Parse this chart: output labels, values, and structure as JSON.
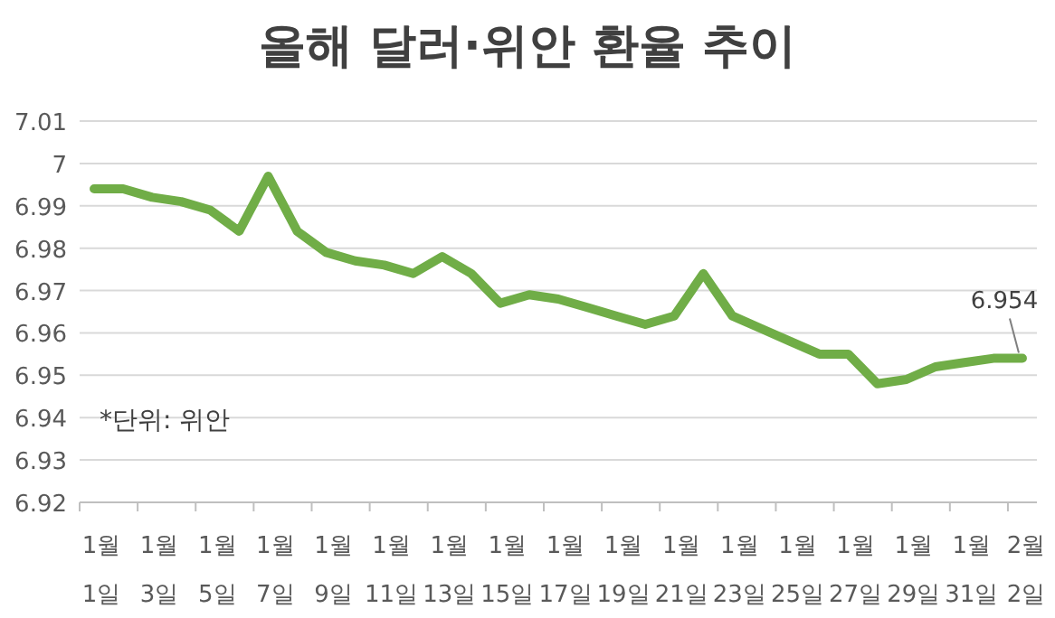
{
  "chart_data": {
    "type": "line",
    "title": "올해 달러·위안 환율 추이",
    "categories": [
      "1월\n1일",
      null,
      "1월\n3일",
      null,
      "1월\n5일",
      null,
      "1월\n7일",
      null,
      "1월\n9일",
      null,
      "1월\n11일",
      null,
      "1월\n13일",
      null,
      "1월\n15일",
      null,
      "1월\n17일",
      null,
      "1월\n19일",
      null,
      "1월\n21일",
      null,
      "1월\n23일",
      null,
      "1월\n25일",
      null,
      "1월\n27일",
      null,
      "1월\n29일",
      null,
      "1월\n31일",
      null,
      "2월\n2일"
    ],
    "series": [
      {
        "color": "#70ad47",
        "values": [
          6.994,
          6.994,
          6.992,
          6.991,
          6.989,
          6.984,
          6.997,
          6.984,
          6.979,
          6.977,
          6.976,
          6.974,
          6.978,
          6.974,
          6.967,
          6.969,
          6.968,
          6.966,
          6.964,
          6.962,
          6.964,
          6.974,
          6.964,
          6.961,
          6.958,
          6.955,
          6.955,
          6.948,
          6.949,
          6.952,
          6.953,
          6.954,
          6.954
        ],
        "value_labels": [
          null,
          null,
          null,
          null,
          null,
          null,
          null,
          null,
          null,
          null,
          null,
          null,
          null,
          null,
          null,
          null,
          null,
          null,
          null,
          null,
          null,
          null,
          null,
          null,
          null,
          null,
          null,
          null,
          null,
          null,
          null,
          null,
          "6.954"
        ]
      }
    ],
    "ylim": [
      6.92,
      7.01
    ],
    "yticks": [
      6.92,
      6.93,
      6.94,
      6.95,
      6.96,
      6.97,
      6.98,
      6.99,
      7,
      7.01
    ],
    "grid": "y",
    "marker": "none",
    "line_style": "solid",
    "annotations": [
      "*단위: 위안"
    ]
  }
}
